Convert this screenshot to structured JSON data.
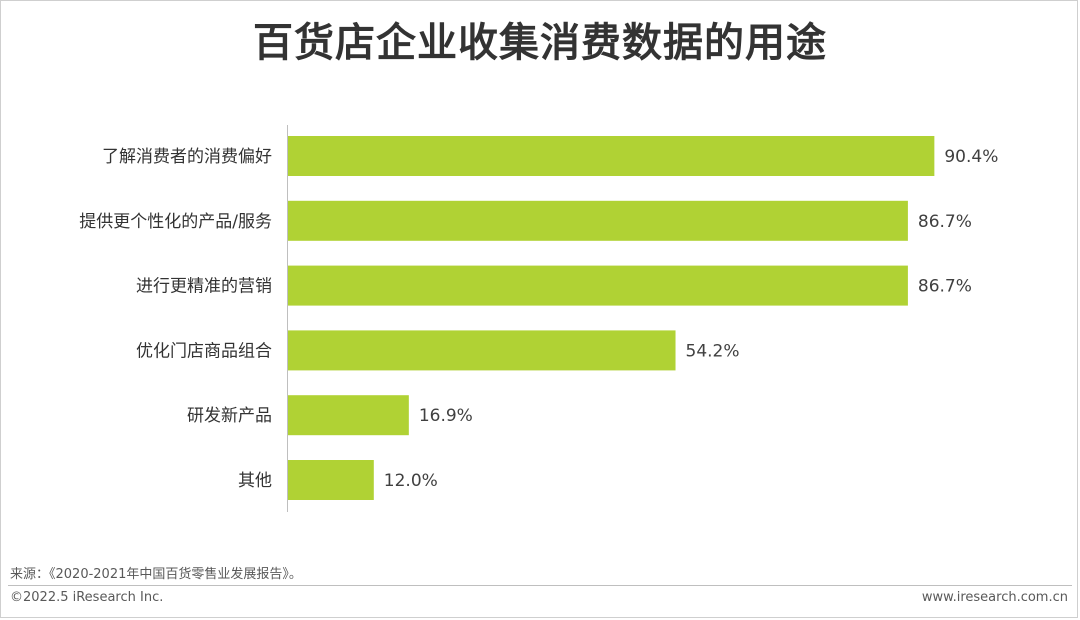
{
  "title": "百货店企业收集消费数据的用途",
  "chart_data": {
    "type": "bar",
    "orientation": "horizontal",
    "title": "百货店企业收集消费数据的用途",
    "categories": [
      "了解消费者的消费偏好",
      "提供更个性化的产品/服务",
      "进行更精准的营销",
      "优化门店商品组合",
      "研发新产品",
      "其他"
    ],
    "values": [
      90.4,
      86.7,
      86.7,
      54.2,
      16.9,
      12.0
    ],
    "value_labels": [
      "90.4%",
      "86.7%",
      "86.7%",
      "54.2%",
      "16.9%",
      "12.0%"
    ],
    "unit": "%",
    "xlim": [
      0,
      100
    ],
    "bar_color": "#b0d234",
    "grid": false,
    "legend": "none"
  },
  "footer": {
    "source": "来源：《2020-2021年中国百货零售业发展报告》。",
    "copyright": "©2022.5 iResearch Inc.",
    "website": "www.iresearch.com.cn"
  }
}
